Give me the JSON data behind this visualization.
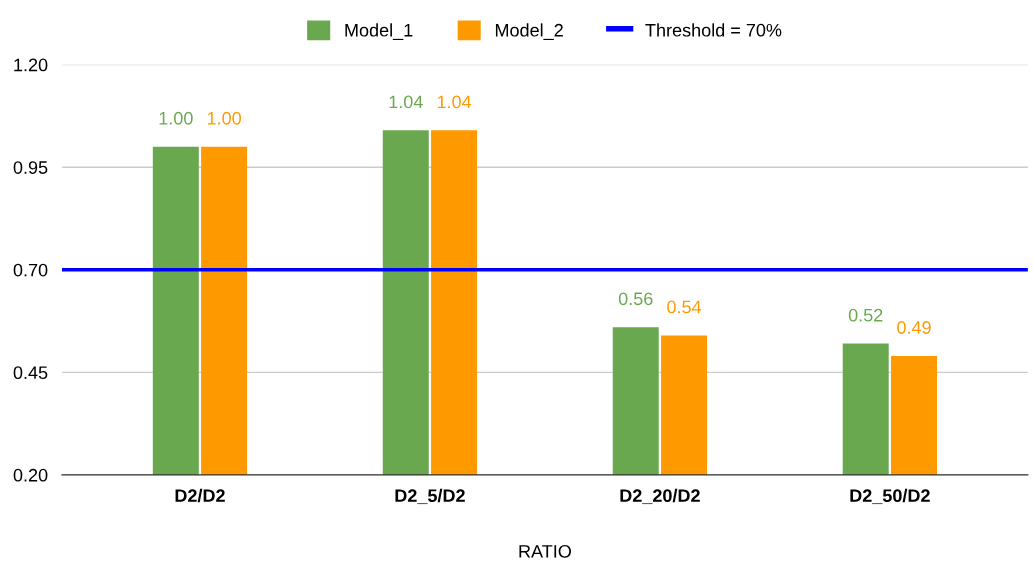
{
  "chart_data": {
    "type": "bar",
    "xlabel": "RATIO",
    "categories": [
      "D2/D2",
      "D2_5/D2",
      "D2_20/D2",
      "D2_50/D2"
    ],
    "series": [
      {
        "name": "Model_1",
        "color": "#6aa84f",
        "values": [
          1.0,
          1.04,
          0.56,
          0.52
        ],
        "value_labels": [
          "1.00",
          "1.04",
          "0.56",
          "0.52"
        ]
      },
      {
        "name": "Model_2",
        "color": "#ff9900",
        "values": [
          1.0,
          1.04,
          0.54,
          0.49
        ],
        "value_labels": [
          "1.00",
          "1.04",
          "0.54",
          "0.49"
        ]
      }
    ],
    "ref_lines": [
      {
        "axis": "y",
        "value": 0.7,
        "label": "Threshold = 70%",
        "color": "#0000ff",
        "line_style": "solid"
      }
    ],
    "ylim": [
      0.2,
      1.2
    ],
    "yticks": [
      {
        "value": 0.2,
        "label": "0.20"
      },
      {
        "value": 0.45,
        "label": "0.45"
      },
      {
        "value": 0.7,
        "label": "0.70"
      },
      {
        "value": 0.95,
        "label": "0.95"
      },
      {
        "value": 1.2,
        "label": "1.20"
      }
    ],
    "grid": "y",
    "legend": "top"
  }
}
